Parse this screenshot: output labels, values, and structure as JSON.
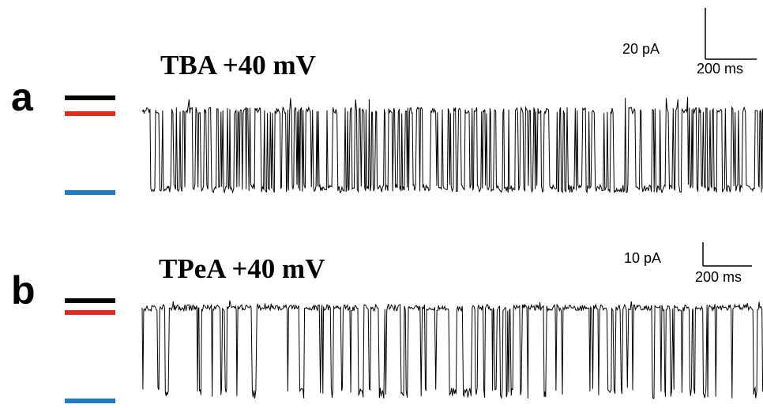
{
  "panels": [
    {
      "letter": "a",
      "title": "TBA  +40 mV",
      "scale_current": "20 pA",
      "scale_time": "200 ms",
      "levels": [
        {
          "name": "closed",
          "color": "#000000"
        },
        {
          "name": "sub",
          "color": "#e8281e"
        },
        {
          "name": "open",
          "color": "#1f78c8"
        }
      ],
      "trace_profile": "burst"
    },
    {
      "letter": "b",
      "title": "TPeA  +40 mV",
      "scale_current": "10 pA",
      "scale_time": "200 ms",
      "levels": [
        {
          "name": "closed",
          "color": "#000000"
        },
        {
          "name": "sub",
          "color": "#e8281e"
        },
        {
          "name": "open",
          "color": "#1f78c8"
        }
      ],
      "trace_profile": "flicker"
    }
  ]
}
